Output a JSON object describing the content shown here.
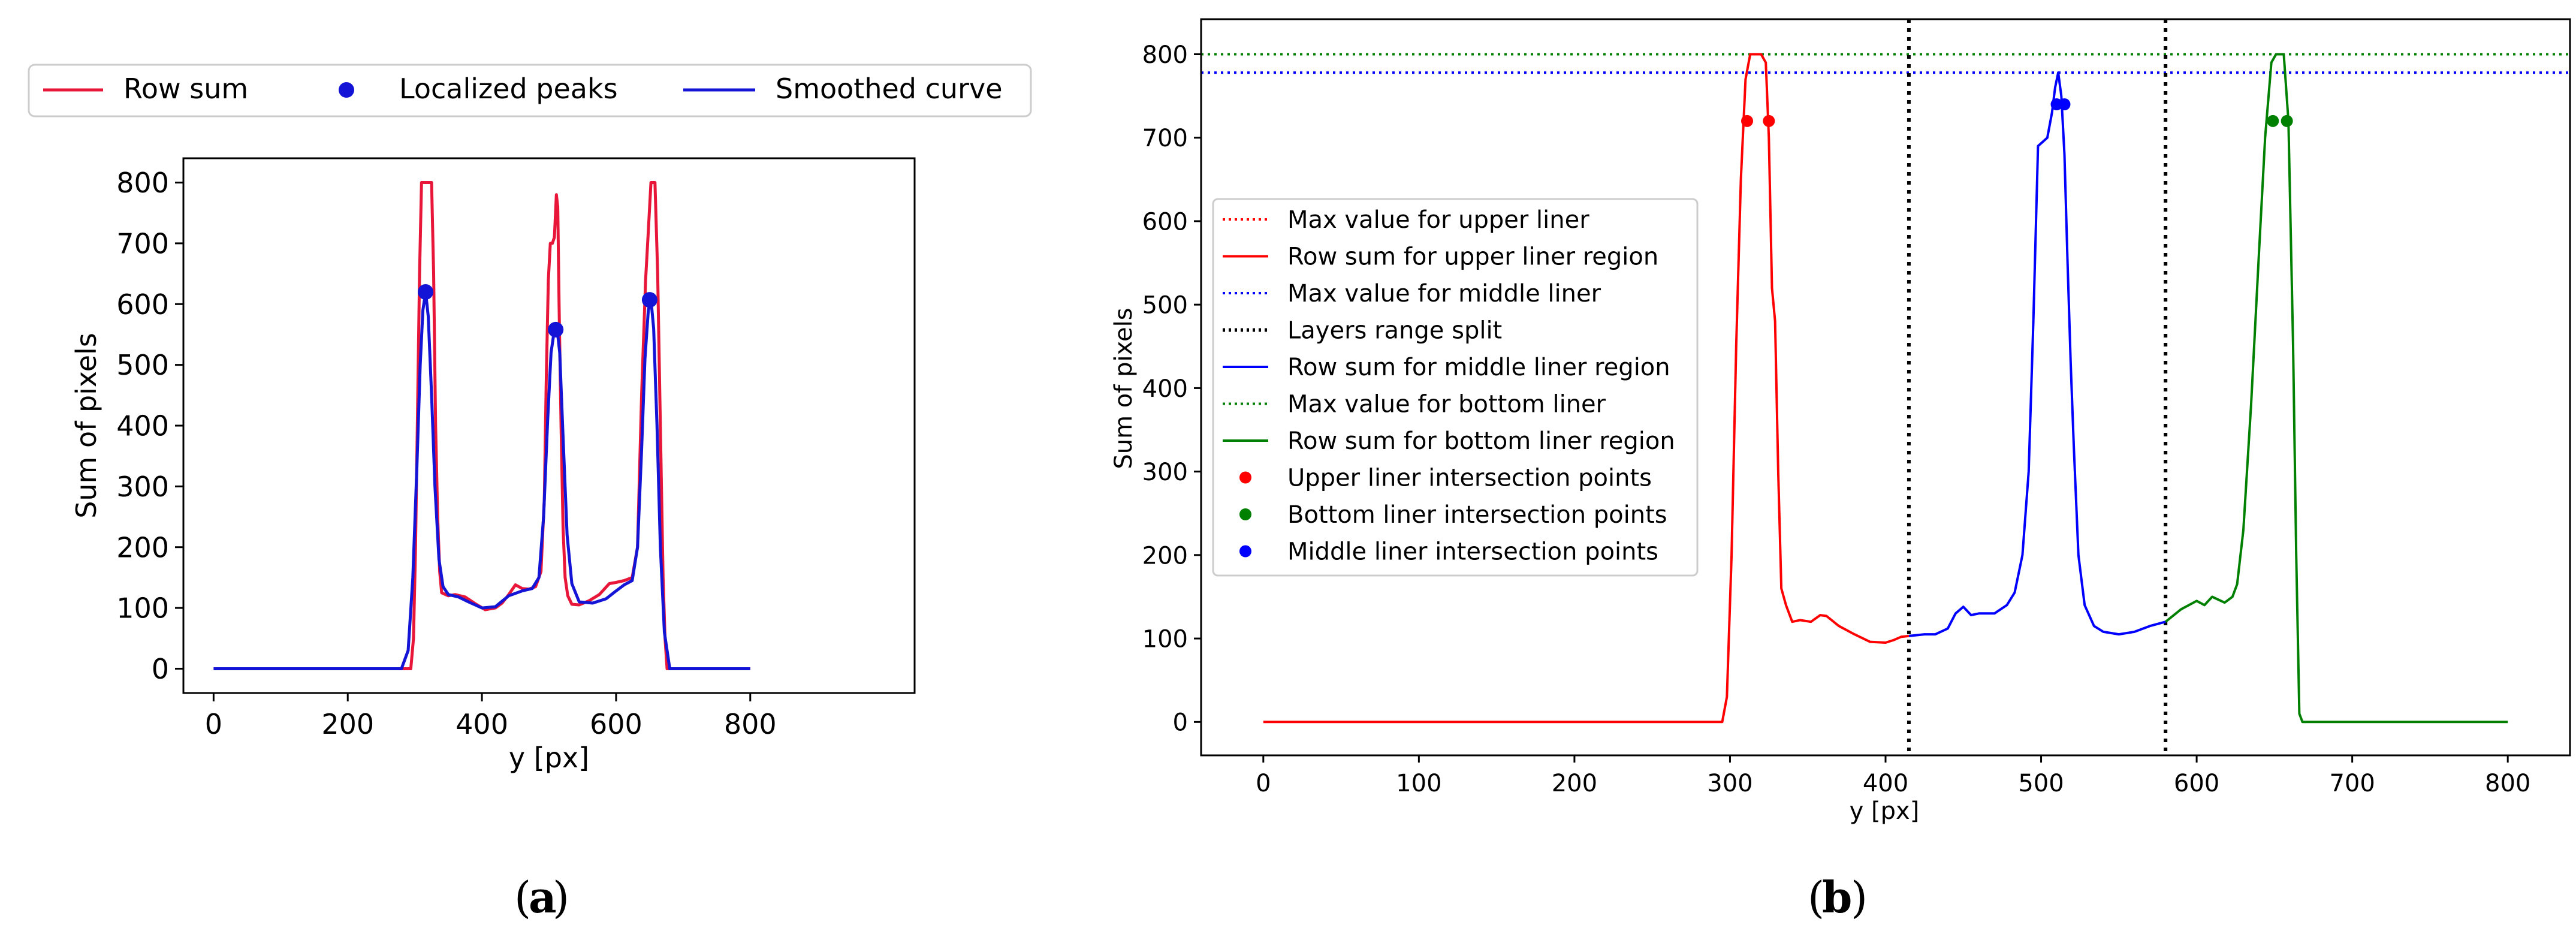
{
  "colors": {
    "red": "#e8173a",
    "blue": "#1414d6",
    "red_b": "#ff0000",
    "blue_b": "#0000ff",
    "green": "#008000",
    "black": "#000000"
  },
  "chart_data": [
    {
      "id": "a",
      "type": "line",
      "caption_letter": "a",
      "xlabel": "y [px]",
      "ylabel": "Sum of pixels",
      "xlim": [
        -45,
        1045
      ],
      "ylim": [
        -40,
        840
      ],
      "xticks": [
        0,
        200,
        400,
        600,
        800
      ],
      "yticks": [
        0,
        100,
        200,
        300,
        400,
        500,
        600,
        700,
        800
      ],
      "legend": [
        {
          "label": "Row sum",
          "kind": "line",
          "color": "#e8173a"
        },
        {
          "label": "Localized peaks",
          "kind": "marker",
          "color": "#1414d6"
        },
        {
          "label": "Smoothed curve",
          "kind": "line",
          "color": "#1414d6"
        }
      ],
      "series": [
        {
          "name": "Row sum",
          "color": "#e8173a",
          "x": [
            0,
            294,
            298,
            301,
            304,
            307,
            310,
            325,
            328,
            331,
            334,
            337,
            340,
            350,
            360,
            375,
            390,
            405,
            420,
            430,
            440,
            450,
            460,
            470,
            480,
            488,
            493,
            496,
            499,
            502,
            505,
            508,
            511,
            513,
            515,
            518,
            521,
            524,
            528,
            534,
            545,
            560,
            575,
            590,
            600,
            612,
            624,
            632,
            638,
            644,
            648,
            652,
            658,
            662,
            666,
            670,
            673,
            676,
            800
          ],
          "y": [
            0,
            0,
            50,
            200,
            420,
            650,
            800,
            800,
            650,
            400,
            250,
            160,
            125,
            120,
            122,
            118,
            107,
            97,
            100,
            108,
            122,
            138,
            132,
            131,
            135,
            160,
            280,
            480,
            640,
            700,
            700,
            710,
            780,
            760,
            600,
            400,
            230,
            150,
            120,
            106,
            105,
            112,
            122,
            140,
            142,
            145,
            150,
            200,
            450,
            640,
            720,
            800,
            800,
            650,
            400,
            150,
            50,
            0,
            0
          ]
        },
        {
          "name": "Smoothed curve",
          "color": "#1414d6",
          "x": [
            0,
            280,
            290,
            297,
            303,
            308,
            312,
            316,
            320,
            325,
            330,
            336,
            342,
            350,
            365,
            380,
            400,
            420,
            440,
            460,
            475,
            485,
            492,
            498,
            503,
            508,
            512,
            516,
            521,
            527,
            534,
            545,
            565,
            585,
            600,
            612,
            624,
            632,
            638,
            643,
            648,
            652,
            656,
            661,
            666,
            672,
            680,
            690,
            800
          ],
          "y": [
            0,
            0,
            30,
            150,
            330,
            500,
            590,
            620,
            580,
            450,
            300,
            180,
            135,
            122,
            118,
            110,
            100,
            102,
            120,
            128,
            132,
            150,
            250,
            410,
            520,
            558,
            560,
            520,
            380,
            220,
            140,
            110,
            108,
            115,
            128,
            138,
            145,
            200,
            360,
            510,
            590,
            608,
            560,
            400,
            200,
            60,
            0,
            0,
            0
          ]
        }
      ],
      "markers": [
        {
          "name": "Localized peaks",
          "color": "#1414d6",
          "x": [
            316,
            510,
            650
          ],
          "y": [
            620,
            558,
            607
          ]
        }
      ]
    },
    {
      "id": "b",
      "type": "line",
      "caption_letter": "b",
      "xlabel": "y [px]",
      "ylabel": "Sum of pixels",
      "xlim": [
        -40,
        840
      ],
      "ylim": [
        -40,
        842
      ],
      "xticks": [
        0,
        100,
        200,
        300,
        400,
        500,
        600,
        700,
        800
      ],
      "yticks": [
        0,
        100,
        200,
        300,
        400,
        500,
        600,
        700,
        800
      ],
      "legend": [
        {
          "label": "Max value for upper liner",
          "kind": "dotted",
          "color": "#ff0000"
        },
        {
          "label": "Row sum for upper liner region",
          "kind": "line",
          "color": "#ff0000"
        },
        {
          "label": "Max value for middle liner",
          "kind": "dotted",
          "color": "#0000ff"
        },
        {
          "label": "Layers range split",
          "kind": "dotted",
          "color": "#000000"
        },
        {
          "label": "Row sum for middle liner region",
          "kind": "line",
          "color": "#0000ff"
        },
        {
          "label": "Max value for bottom liner",
          "kind": "dotted",
          "color": "#008000"
        },
        {
          "label": "Row sum for bottom liner region",
          "kind": "line",
          "color": "#008000"
        },
        {
          "label": "Upper liner intersection points",
          "kind": "marker",
          "color": "#ff0000"
        },
        {
          "label": "Bottom liner intersection points",
          "kind": "marker",
          "color": "#008000"
        },
        {
          "label": "Middle liner intersection points",
          "kind": "marker",
          "color": "#0000ff"
        }
      ],
      "hlines": [
        {
          "name": "Max value for upper liner",
          "y": 800,
          "color": "#ff0000"
        },
        {
          "name": "Max value for bottom liner",
          "y": 800,
          "color": "#008000"
        },
        {
          "name": "Max value for middle liner",
          "y": 778,
          "color": "#0000ff"
        }
      ],
      "vlines": [
        {
          "name": "Layers range split",
          "x": 415,
          "color": "#000000"
        },
        {
          "name": "Layers range split",
          "x": 580,
          "color": "#000000"
        }
      ],
      "series": [
        {
          "name": "Row sum for upper liner region",
          "color": "#ff0000",
          "x": [
            0,
            295,
            298,
            301,
            304,
            307,
            310,
            313,
            316,
            320,
            323,
            325,
            327,
            329,
            331,
            333,
            336,
            340,
            345,
            352,
            358,
            362,
            370,
            380,
            390,
            400,
            405,
            410,
            415
          ],
          "y": [
            0,
            0,
            30,
            200,
            450,
            650,
            770,
            800,
            800,
            800,
            790,
            700,
            520,
            480,
            300,
            160,
            140,
            120,
            122,
            120,
            128,
            127,
            115,
            105,
            96,
            95,
            98,
            102,
            103
          ],
          "dashed": false
        },
        {
          "name": "Row sum for middle liner region",
          "color": "#0000ff",
          "x": [
            415,
            425,
            432,
            440,
            445,
            450,
            455,
            460,
            470,
            478,
            483,
            488,
            492,
            495,
            498,
            501,
            504,
            507,
            509,
            511,
            513,
            515,
            517,
            519,
            521,
            524,
            528,
            534,
            540,
            550,
            560,
            570,
            580
          ],
          "y": [
            103,
            105,
            105,
            112,
            130,
            138,
            128,
            130,
            130,
            140,
            155,
            200,
            300,
            480,
            690,
            695,
            700,
            730,
            760,
            778,
            750,
            680,
            550,
            430,
            330,
            200,
            140,
            115,
            108,
            105,
            108,
            115,
            120
          ],
          "dashed": false
        },
        {
          "name": "Row sum for bottom liner region",
          "color": "#008000",
          "x": [
            580,
            590,
            595,
            600,
            605,
            610,
            618,
            623,
            626,
            630,
            635,
            640,
            644,
            648,
            651,
            656,
            659,
            662,
            664,
            666,
            668,
            700,
            800
          ],
          "y": [
            120,
            135,
            140,
            145,
            140,
            150,
            143,
            150,
            165,
            230,
            380,
            560,
            700,
            790,
            800,
            800,
            720,
            450,
            200,
            10,
            0,
            0,
            0
          ],
          "dashed": false
        }
      ],
      "markers": [
        {
          "name": "Upper liner intersection points",
          "color": "#ff0000",
          "x": [
            311,
            325
          ],
          "y": [
            720,
            720
          ]
        },
        {
          "name": "Bottom liner intersection points",
          "color": "#008000",
          "x": [
            649,
            658
          ],
          "y": [
            720,
            720
          ]
        },
        {
          "name": "Middle liner intersection points",
          "color": "#0000ff",
          "x": [
            510,
            515
          ],
          "y": [
            740,
            740
          ]
        }
      ]
    }
  ]
}
